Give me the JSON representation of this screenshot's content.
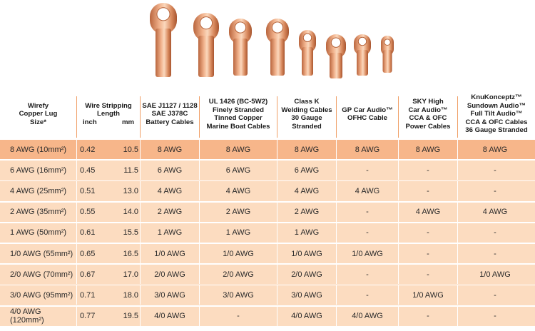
{
  "header": {
    "col_size": [
      "Wirefy",
      "Copper Lug",
      "Size*"
    ],
    "col_strip": [
      "Wire Stripping",
      "Length"
    ],
    "col_strip_units": {
      "inch": "inch",
      "mm": "mm"
    },
    "col_sae": [
      "SAE J1127 / 1128",
      "SAE J378C",
      "Battery Cables"
    ],
    "col_ul": [
      "UL 1426 (BC-5W2)",
      "Finely Stranded",
      "Tinned Copper",
      "Marine Boat Cables"
    ],
    "col_classk": [
      "Class K",
      "Welding Cables",
      "30 Gauge",
      "Stranded"
    ],
    "col_gp": [
      "GP Car Audio™",
      "OFHC Cable"
    ],
    "col_sky": [
      "SKY High",
      "Car Audio™",
      "CCA & OFC",
      "Power Cables"
    ],
    "col_knu": [
      "KnuKonceptz™",
      "Sundown Audio™",
      "Full Tilt Audio™",
      "CCA & OFC Cables",
      "36 Gauge Stranded"
    ]
  },
  "rows": [
    {
      "size": "8 AWG (10mm²)",
      "inch": "0.42",
      "mm": "10.5",
      "sae": "8 AWG",
      "ul": "8 AWG",
      "classk": "8 AWG",
      "gp": "8 AWG",
      "sky": "8 AWG",
      "knu": "8 AWG"
    },
    {
      "size": "6 AWG (16mm²)",
      "inch": "0.45",
      "mm": "11.5",
      "sae": "6 AWG",
      "ul": "6 AWG",
      "classk": "6 AWG",
      "gp": "-",
      "sky": "-",
      "knu": "-"
    },
    {
      "size": "4 AWG (25mm²)",
      "inch": "0.51",
      "mm": "13.0",
      "sae": "4 AWG",
      "ul": "4 AWG",
      "classk": "4 AWG",
      "gp": "4 AWG",
      "sky": "-",
      "knu": "-"
    },
    {
      "size": "2 AWG (35mm²)",
      "inch": "0.55",
      "mm": "14.0",
      "sae": "2 AWG",
      "ul": "2 AWG",
      "classk": "2 AWG",
      "gp": "-",
      "sky": "4 AWG",
      "knu": "4 AWG"
    },
    {
      "size": "1 AWG (50mm²)",
      "inch": "0.61",
      "mm": "15.5",
      "sae": "1 AWG",
      "ul": "1 AWG",
      "classk": "1 AWG",
      "gp": "-",
      "sky": "-",
      "knu": "-"
    },
    {
      "size": "1/0 AWG (55mm²)",
      "inch": "0.65",
      "mm": "16.5",
      "sae": "1/0 AWG",
      "ul": "1/0 AWG",
      "classk": "1/0 AWG",
      "gp": "1/0 AWG",
      "sky": "-",
      "knu": "-"
    },
    {
      "size": "2/0 AWG (70mm²)",
      "inch": "0.67",
      "mm": "17.0",
      "sae": "2/0 AWG",
      "ul": "2/0 AWG",
      "classk": "2/0 AWG",
      "gp": "-",
      "sky": "-",
      "knu": "1/0 AWG"
    },
    {
      "size": "3/0 AWG (95mm²)",
      "inch": "0.71",
      "mm": "18.0",
      "sae": "3/0 AWG",
      "ul": "3/0 AWG",
      "classk": "3/0 AWG",
      "gp": "-",
      "sky": "1/0 AWG",
      "knu": "-"
    },
    {
      "size": "4/0 AWG (120mm²)",
      "inch": "0.77",
      "mm": "19.5",
      "sae": "4/0 AWG",
      "ul": "-",
      "classk": "4/0 AWG",
      "gp": "4/0 AWG",
      "sky": "-",
      "knu": "-"
    }
  ],
  "colors": {
    "row_bg": "#fcdcc0",
    "row_first_bg": "#f7b68a",
    "divider": "#f0a068",
    "copper": "#d9875a"
  },
  "images": {
    "lugs": "copper-lug-icon"
  }
}
